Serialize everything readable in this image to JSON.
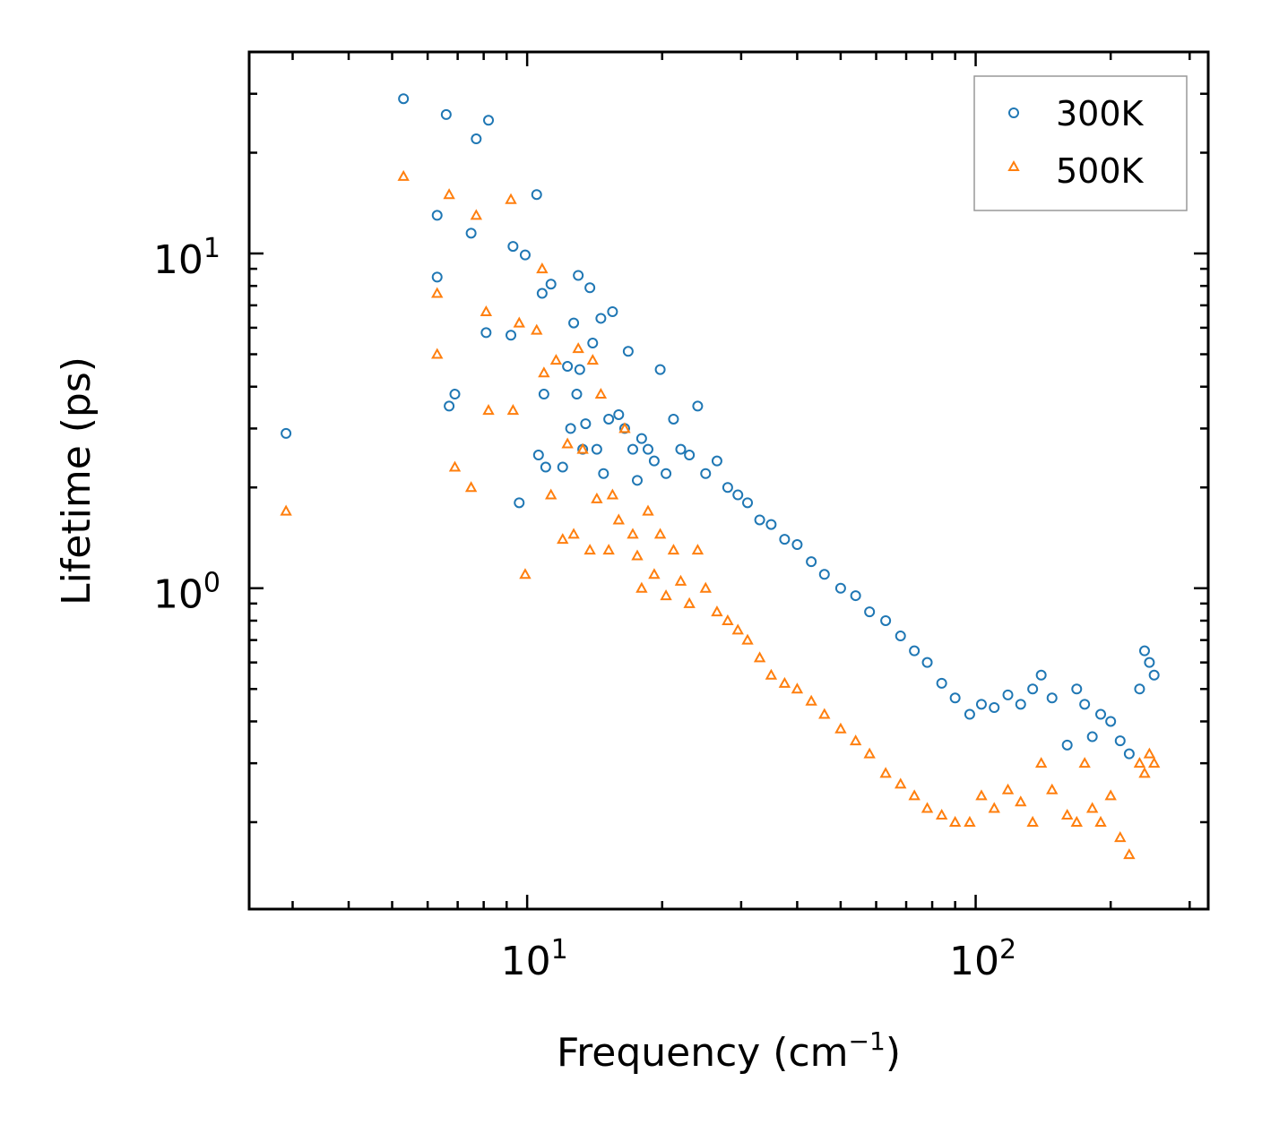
{
  "chart_data": {
    "type": "scatter",
    "title": "",
    "xlabel": "Frequency (cm",
    "xlabel_sup": "−1",
    "xlabel_tail": ")",
    "ylabel": "Lifetime (ps)",
    "xscale": "log",
    "yscale": "log",
    "xlim": [
      2.4,
      330
    ],
    "ylim": [
      0.11,
      40
    ],
    "x_ticks": [
      {
        "value": 10,
        "base": "10",
        "exp": "1"
      },
      {
        "value": 100,
        "base": "10",
        "exp": "2"
      }
    ],
    "y_ticks": [
      {
        "value": 1,
        "base": "10",
        "exp": "0"
      },
      {
        "value": 10,
        "base": "10",
        "exp": "1"
      }
    ],
    "legend_position": "top-right",
    "series": [
      {
        "name": "300K",
        "marker": "circle",
        "color": "#1f77b4",
        "x": [
          2.9,
          5.3,
          6.3,
          6.3,
          6.6,
          6.7,
          6.9,
          7.5,
          7.7,
          8.1,
          8.2,
          9.2,
          9.3,
          9.6,
          9.9,
          10.5,
          10.6,
          10.8,
          10.9,
          11.0,
          11.3,
          12.0,
          12.3,
          12.5,
          12.7,
          12.9,
          13.0,
          13.1,
          13.3,
          13.5,
          13.8,
          14.0,
          14.3,
          14.6,
          14.8,
          15.2,
          15.5,
          16.0,
          16.5,
          16.8,
          17.2,
          17.6,
          18.0,
          18.6,
          19.2,
          19.8,
          20.4,
          21.2,
          22.0,
          23.0,
          24.0,
          25.0,
          26.5,
          28.0,
          29.5,
          31.0,
          33.0,
          35.0,
          37.5,
          40.0,
          43.0,
          46.0,
          50.0,
          54.0,
          58.0,
          63.0,
          68.0,
          73.0,
          78.0,
          84.0,
          90.0,
          97.0,
          103.0,
          110.0,
          118.0,
          126.0,
          134.0,
          140.0,
          148.0,
          160.0,
          168.0,
          175.0,
          182.0,
          190.0,
          200.0,
          210.0,
          220.0,
          232.0,
          238.0,
          244.0,
          250.0
        ],
        "y": [
          2.9,
          29.0,
          13.0,
          8.5,
          26.0,
          3.5,
          3.8,
          11.5,
          22.0,
          5.8,
          25.0,
          5.7,
          10.5,
          1.8,
          9.9,
          15.0,
          2.5,
          7.6,
          3.8,
          2.3,
          8.1,
          2.3,
          4.6,
          3.0,
          6.2,
          3.8,
          8.6,
          4.5,
          2.6,
          3.1,
          7.9,
          5.4,
          2.6,
          6.4,
          2.2,
          3.2,
          6.7,
          3.3,
          3.0,
          5.1,
          2.6,
          2.1,
          2.8,
          2.6,
          2.4,
          4.5,
          2.2,
          3.2,
          2.6,
          2.5,
          3.5,
          2.2,
          2.4,
          2.0,
          1.9,
          1.8,
          1.6,
          1.55,
          1.4,
          1.35,
          1.2,
          1.1,
          1.0,
          0.95,
          0.85,
          0.8,
          0.72,
          0.65,
          0.6,
          0.52,
          0.47,
          0.42,
          0.45,
          0.44,
          0.48,
          0.45,
          0.5,
          0.55,
          0.47,
          0.34,
          0.5,
          0.45,
          0.36,
          0.42,
          0.4,
          0.35,
          0.32,
          0.5,
          0.65,
          0.6,
          0.55
        ]
      },
      {
        "name": "500K",
        "marker": "triangle",
        "color": "#ff7f0e",
        "x": [
          2.9,
          5.3,
          6.3,
          6.3,
          6.7,
          6.9,
          7.5,
          7.7,
          8.1,
          8.2,
          9.2,
          9.3,
          9.6,
          9.9,
          10.5,
          10.8,
          10.9,
          11.3,
          11.6,
          12.0,
          12.3,
          12.7,
          13.0,
          13.3,
          13.8,
          14.0,
          14.3,
          14.6,
          15.2,
          15.5,
          16.0,
          16.5,
          17.2,
          17.6,
          18.0,
          18.6,
          19.2,
          19.8,
          20.4,
          21.2,
          22.0,
          23.0,
          24.0,
          25.0,
          26.5,
          28.0,
          29.5,
          31.0,
          33.0,
          35.0,
          37.5,
          40.0,
          43.0,
          46.0,
          50.0,
          54.0,
          58.0,
          63.0,
          68.0,
          73.0,
          78.0,
          84.0,
          90.0,
          97.0,
          103.0,
          110.0,
          118.0,
          126.0,
          134.0,
          140.0,
          148.0,
          160.0,
          168.0,
          175.0,
          182.0,
          190.0,
          200.0,
          210.0,
          220.0,
          232.0,
          238.0,
          244.0,
          250.0
        ],
        "y": [
          1.7,
          17.0,
          7.6,
          5.0,
          15.0,
          2.3,
          2.0,
          13.0,
          6.7,
          3.4,
          14.5,
          3.4,
          6.2,
          1.1,
          5.9,
          9.0,
          4.4,
          1.9,
          4.8,
          1.4,
          2.7,
          1.45,
          5.2,
          2.6,
          1.3,
          4.8,
          1.85,
          3.8,
          1.3,
          1.9,
          1.6,
          3.0,
          1.45,
          1.25,
          1.0,
          1.7,
          1.1,
          1.45,
          0.95,
          1.3,
          1.05,
          0.9,
          1.3,
          1.0,
          0.85,
          0.8,
          0.75,
          0.7,
          0.62,
          0.55,
          0.52,
          0.5,
          0.46,
          0.42,
          0.38,
          0.35,
          0.32,
          0.28,
          0.26,
          0.24,
          0.22,
          0.21,
          0.2,
          0.2,
          0.24,
          0.22,
          0.25,
          0.23,
          0.2,
          0.3,
          0.25,
          0.21,
          0.2,
          0.3,
          0.22,
          0.2,
          0.24,
          0.18,
          0.16,
          0.3,
          0.28,
          0.32,
          0.3
        ]
      }
    ]
  }
}
